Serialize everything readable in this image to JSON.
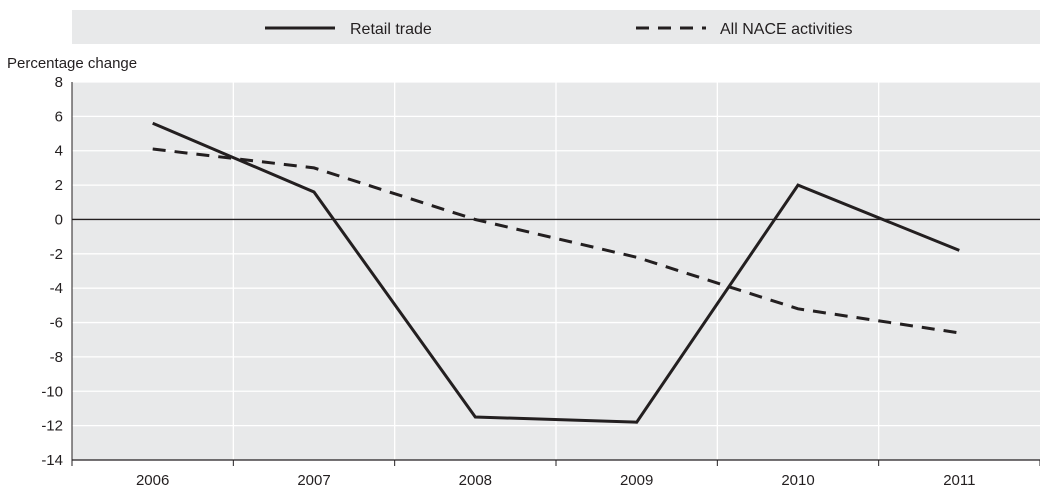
{
  "chart_data": {
    "type": "line",
    "title": "",
    "xlabel": "",
    "ylabel": "Percentage change",
    "categories": [
      "2006",
      "2007",
      "2008",
      "2009",
      "2010",
      "2011"
    ],
    "ylim": [
      -14,
      8
    ],
    "yticks": [
      8,
      6,
      4,
      2,
      0,
      -2,
      -4,
      -6,
      -8,
      -10,
      -12,
      -14
    ],
    "grid": true,
    "legend_position": "top",
    "series": [
      {
        "name": "Retail trade",
        "style": "solid",
        "color": "#231f20",
        "values": [
          5.6,
          1.6,
          -11.5,
          -11.8,
          2.0,
          -1.8
        ]
      },
      {
        "name": "All NACE activities",
        "style": "dashed",
        "color": "#231f20",
        "values": [
          4.1,
          3.0,
          0.0,
          -2.2,
          -5.2,
          -6.6
        ]
      }
    ],
    "colors": {
      "plot_background": "#e8e9ea",
      "legend_background": "#e8e9ea",
      "gridline": "#ffffff",
      "line": "#231f20"
    }
  }
}
